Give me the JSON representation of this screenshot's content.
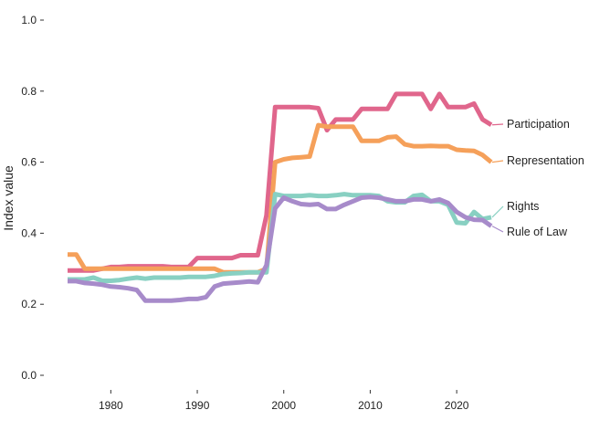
{
  "chart_data": {
    "type": "line",
    "title": "",
    "xlabel": "",
    "ylabel": "Index value",
    "xlim": [
      1975,
      2024
    ],
    "ylim": [
      0,
      1
    ],
    "x_ticks": [
      1980,
      1990,
      2000,
      2010,
      2020
    ],
    "y_ticks": [
      0.0,
      0.2,
      0.4,
      0.6,
      0.8,
      1.0
    ],
    "y_tick_labels": [
      "0.0",
      "0.2",
      "0.4",
      "0.6",
      "0.8",
      "1.0"
    ],
    "grid": false,
    "legend": "direct labels at line ends",
    "x": [
      1975,
      1976,
      1977,
      1978,
      1979,
      1980,
      1981,
      1982,
      1983,
      1984,
      1985,
      1986,
      1987,
      1988,
      1989,
      1990,
      1991,
      1992,
      1993,
      1994,
      1995,
      1996,
      1997,
      1998,
      1999,
      2000,
      2001,
      2002,
      2003,
      2004,
      2005,
      2006,
      2007,
      2008,
      2009,
      2010,
      2011,
      2012,
      2013,
      2014,
      2015,
      2016,
      2017,
      2018,
      2019,
      2020,
      2021,
      2022,
      2023,
      2024
    ],
    "series": [
      {
        "name": "Participation",
        "color": "#e0668c",
        "values": [
          0.295,
          0.295,
          0.295,
          0.295,
          0.3,
          0.305,
          0.305,
          0.307,
          0.307,
          0.307,
          0.307,
          0.307,
          0.305,
          0.305,
          0.305,
          0.33,
          0.33,
          0.33,
          0.33,
          0.33,
          0.338,
          0.338,
          0.338,
          0.45,
          0.755,
          0.755,
          0.755,
          0.755,
          0.755,
          0.752,
          0.69,
          0.72,
          0.72,
          0.72,
          0.75,
          0.75,
          0.75,
          0.75,
          0.792,
          0.792,
          0.792,
          0.792,
          0.75,
          0.792,
          0.755,
          0.755,
          0.755,
          0.765,
          0.72,
          0.705
        ]
      },
      {
        "name": "Representation",
        "color": "#f5a05a",
        "values": [
          0.34,
          0.34,
          0.3,
          0.3,
          0.3,
          0.3,
          0.3,
          0.3,
          0.3,
          0.3,
          0.3,
          0.3,
          0.3,
          0.3,
          0.3,
          0.3,
          0.3,
          0.3,
          0.29,
          0.29,
          0.29,
          0.29,
          0.29,
          0.3,
          0.6,
          0.608,
          0.612,
          0.614,
          0.616,
          0.704,
          0.7,
          0.7,
          0.7,
          0.7,
          0.66,
          0.66,
          0.66,
          0.67,
          0.672,
          0.65,
          0.645,
          0.645,
          0.646,
          0.645,
          0.645,
          0.635,
          0.633,
          0.632,
          0.62,
          0.6
        ]
      },
      {
        "name": "Rights",
        "color": "#88d0c2",
        "values": [
          0.27,
          0.27,
          0.27,
          0.275,
          0.266,
          0.266,
          0.268,
          0.272,
          0.275,
          0.272,
          0.275,
          0.275,
          0.275,
          0.275,
          0.277,
          0.277,
          0.277,
          0.28,
          0.285,
          0.287,
          0.288,
          0.29,
          0.29,
          0.29,
          0.51,
          0.505,
          0.505,
          0.505,
          0.507,
          0.505,
          0.505,
          0.507,
          0.51,
          0.507,
          0.507,
          0.507,
          0.505,
          0.49,
          0.487,
          0.487,
          0.505,
          0.508,
          0.49,
          0.49,
          0.48,
          0.43,
          0.428,
          0.46,
          0.44,
          0.445
        ]
      },
      {
        "name": "Rule of Law",
        "color": "#a78bca",
        "values": [
          0.265,
          0.265,
          0.26,
          0.258,
          0.255,
          0.25,
          0.248,
          0.245,
          0.24,
          0.21,
          0.21,
          0.21,
          0.21,
          0.212,
          0.215,
          0.215,
          0.22,
          0.25,
          0.258,
          0.26,
          0.262,
          0.264,
          0.262,
          0.31,
          0.47,
          0.5,
          0.49,
          0.482,
          0.48,
          0.482,
          0.468,
          0.468,
          0.48,
          0.49,
          0.5,
          0.502,
          0.5,
          0.495,
          0.49,
          0.49,
          0.495,
          0.495,
          0.49,
          0.495,
          0.485,
          0.46,
          0.445,
          0.438,
          0.437,
          0.42
        ]
      }
    ]
  }
}
